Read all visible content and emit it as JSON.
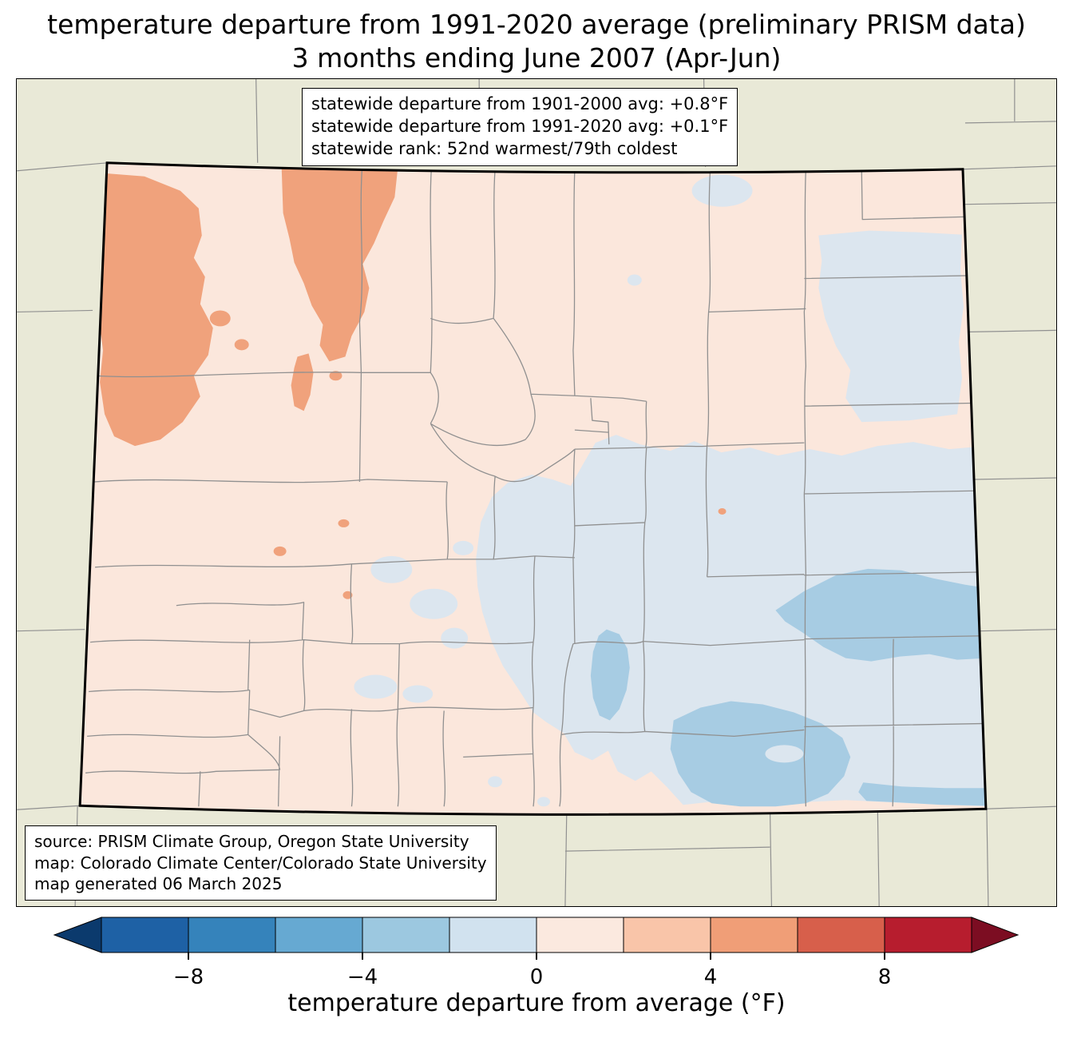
{
  "title": {
    "line1": "temperature departure from 1991-2020 average (preliminary PRISM data)",
    "line2": "3 months ending June 2007 (Apr-Jun)"
  },
  "stats_box": {
    "lines": [
      "statewide departure from 1901-2000 avg: +0.8°F",
      "statewide departure from 1991-2020 avg: +0.1°F",
      "statewide rank: 52nd warmest/79th coldest"
    ]
  },
  "source_box": {
    "lines": [
      "source: PRISM Climate Group, Oregon State University",
      "map: Colorado Climate Center/Colorado State University",
      "map generated 06 March 2025"
    ]
  },
  "colorbar": {
    "label": "temperature departure from average (°F)",
    "range": [
      -10,
      10
    ],
    "tick_values": [
      -8,
      -4,
      0,
      4,
      8
    ],
    "tick_labels": [
      "−8",
      "−4",
      "0",
      "4",
      "8"
    ],
    "segment_colors": [
      "#1e61a5",
      "#3583bb",
      "#66a9d2",
      "#9cc8e0",
      "#d1e2ef",
      "#fbe9df",
      "#f9c5a9",
      "#f09e77",
      "#d75f4b",
      "#b71d2e"
    ],
    "arrow_left_color": "#0b3a6d",
    "arrow_right_color": "#7c0d22"
  },
  "map": {
    "colors": {
      "background": "#e9e9d7",
      "base": "#fbe7dc",
      "warm": "#f0a27c",
      "cool_light": "#dce6ef",
      "cool_medium": "#a7cce3",
      "county_line": "#909090",
      "state_border": "#000000"
    }
  }
}
